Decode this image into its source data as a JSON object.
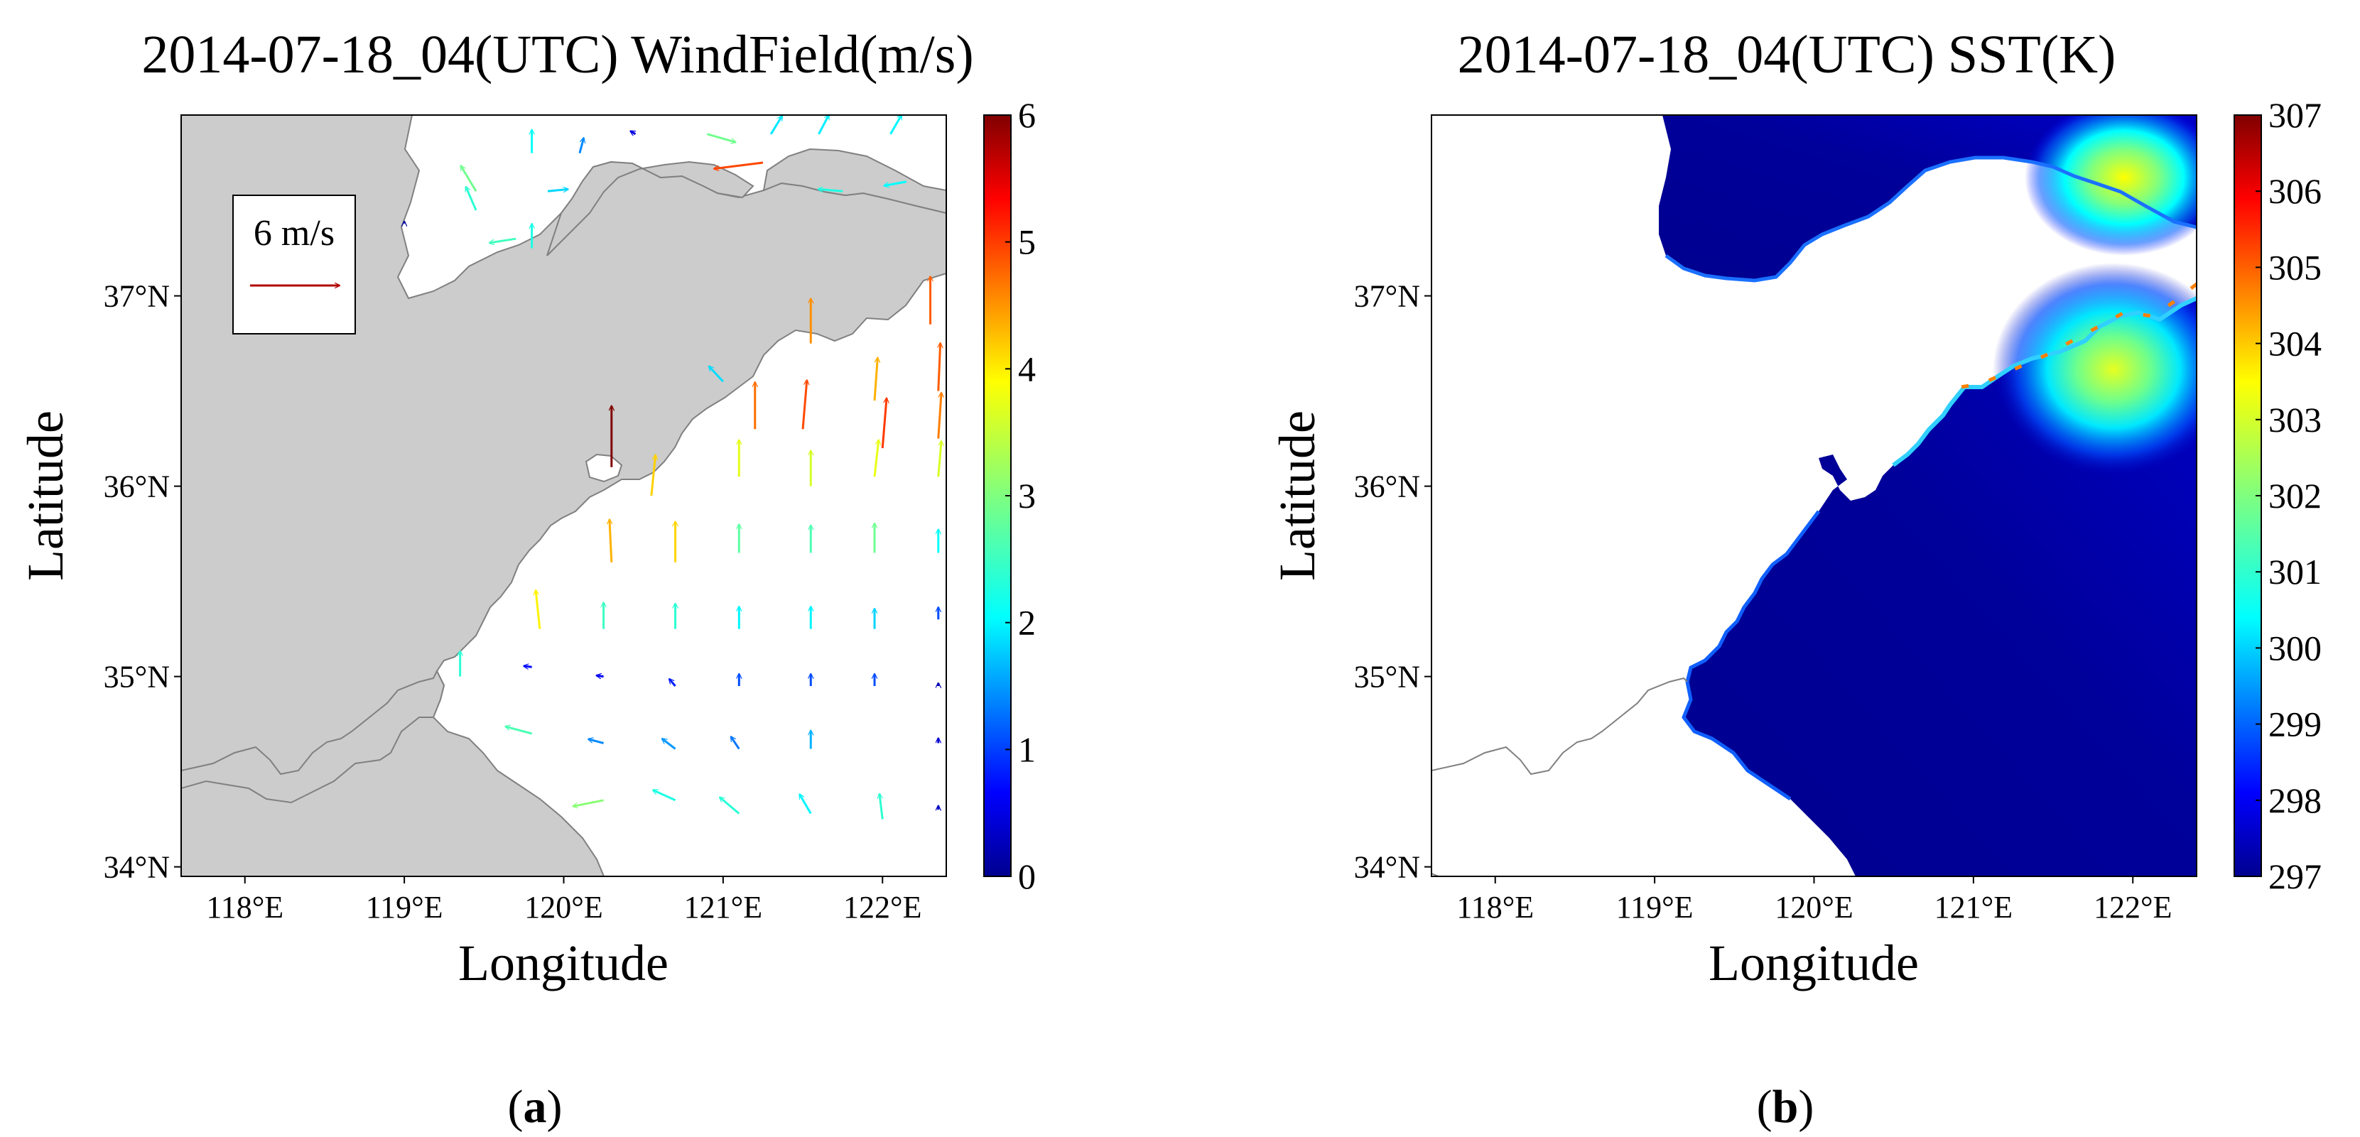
{
  "panels": [
    {
      "id": "a",
      "title": "2014-07-18_04(UTC) WindField(m/s)",
      "xlabel": "Longitude",
      "ylabel": "Latitude",
      "x_ticks": [
        "118°E",
        "119°E",
        "120°E",
        "121°E",
        "122°E"
      ],
      "y_ticks": [
        "34°N",
        "35°N",
        "36°N",
        "37°N"
      ],
      "colorbar_ticks": [
        "0",
        "1",
        "2",
        "3",
        "4",
        "5",
        "6"
      ],
      "reference_vector_label": "6 m/s",
      "caption_open": "(",
      "caption_letter": "a",
      "caption_close": ")"
    },
    {
      "id": "b",
      "title": "2014-07-18_04(UTC) SST(K)",
      "xlabel": "Longitude",
      "ylabel": "Latitude",
      "x_ticks": [
        "118°E",
        "119°E",
        "120°E",
        "121°E",
        "122°E"
      ],
      "y_ticks": [
        "34°N",
        "35°N",
        "36°N",
        "37°N"
      ],
      "colorbar_ticks": [
        "297",
        "298",
        "299",
        "300",
        "301",
        "302",
        "303",
        "304",
        "305",
        "306",
        "307"
      ],
      "caption_open": "(",
      "caption_letter": "b",
      "caption_close": ")"
    }
  ],
  "chart_data": [
    {
      "type": "other",
      "subtype": "vector-field-map",
      "title": "2014-07-18_04(UTC) WindField(m/s)",
      "xlabel": "Longitude",
      "ylabel": "Latitude",
      "xlim": [
        117.6,
        122.4
      ],
      "ylim": [
        33.95,
        37.95
      ],
      "x_ticks": [
        118,
        119,
        120,
        121,
        122
      ],
      "y_ticks": [
        34,
        35,
        36,
        37
      ],
      "colorbar": {
        "min": 0,
        "max": 6,
        "colormap": "jet"
      },
      "land_color": "#cccccc",
      "vectors": [
        {
          "lon": 119.45,
          "lat": 37.55,
          "u": -1.5,
          "v": 2.5
        },
        {
          "lon": 119.8,
          "lat": 37.75,
          "u": 0,
          "v": 2.3
        },
        {
          "lon": 120.1,
          "lat": 37.75,
          "u": 0.4,
          "v": 1.5
        },
        {
          "lon": 120.45,
          "lat": 37.85,
          "u": -0.5,
          "v": 0.3
        },
        {
          "lon": 120.9,
          "lat": 37.85,
          "u": 2.8,
          "v": -0.8
        },
        {
          "lon": 121.3,
          "lat": 37.85,
          "u": 1.1,
          "v": 1.8
        },
        {
          "lon": 121.6,
          "lat": 37.85,
          "u": 1.0,
          "v": 1.9
        },
        {
          "lon": 122.05,
          "lat": 37.85,
          "u": 1.1,
          "v": 1.9
        },
        {
          "lon": 119.45,
          "lat": 37.45,
          "u": -1.0,
          "v": 2.3
        },
        {
          "lon": 119.9,
          "lat": 37.55,
          "u": 2.0,
          "v": 0.2
        },
        {
          "lon": 121.25,
          "lat": 37.7,
          "u": -4.8,
          "v": -0.6
        },
        {
          "lon": 121.75,
          "lat": 37.55,
          "u": -2.4,
          "v": 0.2
        },
        {
          "lon": 122.15,
          "lat": 37.6,
          "u": -2.2,
          "v": -0.4
        },
        {
          "lon": 119.7,
          "lat": 37.3,
          "u": -2.6,
          "v": -0.4
        },
        {
          "lon": 119.8,
          "lat": 37.25,
          "u": 0,
          "v": 2.4
        },
        {
          "lon": 119.0,
          "lat": 37.38,
          "u": 0,
          "v": 0.2
        },
        {
          "lon": 121.95,
          "lat": 36.45,
          "u": 0.3,
          "v": 4.2
        },
        {
          "lon": 122.35,
          "lat": 36.5,
          "u": 0.2,
          "v": 4.7
        },
        {
          "lon": 121.0,
          "lat": 36.55,
          "u": -1.4,
          "v": 1.5
        },
        {
          "lon": 121.2,
          "lat": 36.3,
          "u": 0,
          "v": 4.6
        },
        {
          "lon": 121.5,
          "lat": 36.3,
          "u": 0.4,
          "v": 4.8
        },
        {
          "lon": 122.0,
          "lat": 36.2,
          "u": 0.4,
          "v": 4.9
        },
        {
          "lon": 122.35,
          "lat": 36.25,
          "u": 0.3,
          "v": 4.5
        },
        {
          "lon": 121.55,
          "lat": 36.75,
          "u": 0,
          "v": 4.4
        },
        {
          "lon": 122.3,
          "lat": 36.85,
          "u": 0,
          "v": 4.7
        },
        {
          "lon": 120.3,
          "lat": 36.1,
          "u": 0,
          "v": 6.0
        },
        {
          "lon": 120.55,
          "lat": 35.95,
          "u": 0.4,
          "v": 4.0
        },
        {
          "lon": 120.3,
          "lat": 35.6,
          "u": -0.2,
          "v": 4.2
        },
        {
          "lon": 121.1,
          "lat": 36.05,
          "u": 0,
          "v": 3.6
        },
        {
          "lon": 121.55,
          "lat": 36.0,
          "u": 0,
          "v": 3.5
        },
        {
          "lon": 121.95,
          "lat": 36.05,
          "u": 0.4,
          "v": 3.6
        },
        {
          "lon": 122.35,
          "lat": 36.05,
          "u": 0.3,
          "v": 3.5
        },
        {
          "lon": 120.7,
          "lat": 35.6,
          "u": 0,
          "v": 4.0
        },
        {
          "lon": 121.1,
          "lat": 35.65,
          "u": 0,
          "v": 2.8
        },
        {
          "lon": 121.55,
          "lat": 35.65,
          "u": 0,
          "v": 2.7
        },
        {
          "lon": 121.95,
          "lat": 35.65,
          "u": 0,
          "v": 2.9
        },
        {
          "lon": 122.35,
          "lat": 35.65,
          "u": 0,
          "v": 2.3
        },
        {
          "lon": 119.85,
          "lat": 35.25,
          "u": -0.4,
          "v": 3.8
        },
        {
          "lon": 120.25,
          "lat": 35.25,
          "u": 0,
          "v": 2.6
        },
        {
          "lon": 120.7,
          "lat": 35.25,
          "u": 0,
          "v": 2.5
        },
        {
          "lon": 121.1,
          "lat": 35.25,
          "u": 0,
          "v": 2.2
        },
        {
          "lon": 121.55,
          "lat": 35.25,
          "u": 0,
          "v": 2.2
        },
        {
          "lon": 121.95,
          "lat": 35.25,
          "u": 0,
          "v": 2.0
        },
        {
          "lon": 122.35,
          "lat": 35.3,
          "u": 0,
          "v": 1.2
        },
        {
          "lon": 119.35,
          "lat": 35.0,
          "u": 0,
          "v": 2.5
        },
        {
          "lon": 119.8,
          "lat": 35.05,
          "u": -0.8,
          "v": 0.1
        },
        {
          "lon": 120.25,
          "lat": 35.0,
          "u": -0.7,
          "v": 0.1
        },
        {
          "lon": 120.7,
          "lat": 34.95,
          "u": -0.6,
          "v": 0.7
        },
        {
          "lon": 121.1,
          "lat": 34.95,
          "u": 0,
          "v": 1.2
        },
        {
          "lon": 121.55,
          "lat": 34.95,
          "u": 0,
          "v": 1.2
        },
        {
          "lon": 121.95,
          "lat": 34.95,
          "u": 0,
          "v": 1.2
        },
        {
          "lon": 122.35,
          "lat": 34.95,
          "u": 0,
          "v": 0.3
        },
        {
          "lon": 119.8,
          "lat": 34.7,
          "u": -2.6,
          "v": 0.7
        },
        {
          "lon": 120.25,
          "lat": 34.65,
          "u": -1.5,
          "v": 0.4
        },
        {
          "lon": 120.7,
          "lat": 34.62,
          "u": -1.3,
          "v": 1.0
        },
        {
          "lon": 121.1,
          "lat": 34.62,
          "u": -0.8,
          "v": 1.2
        },
        {
          "lon": 121.55,
          "lat": 34.62,
          "u": 0,
          "v": 1.8
        },
        {
          "lon": 122.35,
          "lat": 34.65,
          "u": 0,
          "v": 0.5
        },
        {
          "lon": 120.25,
          "lat": 34.35,
          "u": -3.0,
          "v": -0.6
        },
        {
          "lon": 120.7,
          "lat": 34.35,
          "u": -2.2,
          "v": 1.0
        },
        {
          "lon": 121.1,
          "lat": 34.28,
          "u": -1.9,
          "v": 1.6
        },
        {
          "lon": 121.55,
          "lat": 34.28,
          "u": -1.1,
          "v": 1.9
        },
        {
          "lon": 122.0,
          "lat": 34.25,
          "u": -0.3,
          "v": 2.5
        },
        {
          "lon": 122.35,
          "lat": 34.3,
          "u": 0,
          "v": 0.4
        }
      ],
      "reference_vector": {
        "label": "6 m/s",
        "speed": 6
      }
    },
    {
      "type": "heatmap",
      "subtype": "filled-map",
      "title": "2014-07-18_04(UTC) SST(K)",
      "xlabel": "Longitude",
      "ylabel": "Latitude",
      "xlim": [
        117.6,
        122.4
      ],
      "ylim": [
        33.95,
        37.95
      ],
      "x_ticks": [
        118,
        119,
        120,
        121,
        122
      ],
      "y_ticks": [
        34,
        35,
        36,
        37
      ],
      "colorbar": {
        "min": 297,
        "max": 307,
        "colormap": "jet"
      },
      "land_color": "#ffffff",
      "features": [
        {
          "name": "bohai-warm-spot",
          "lon": 121.95,
          "lat": 37.75,
          "value": 301.5
        },
        {
          "name": "yellow-sea-warm-spot",
          "lon": 121.85,
          "lat": 36.75,
          "value": 302.5
        },
        {
          "name": "nearshore-band",
          "value": 298
        },
        {
          "name": "offshore-background",
          "value": 297
        }
      ]
    }
  ]
}
